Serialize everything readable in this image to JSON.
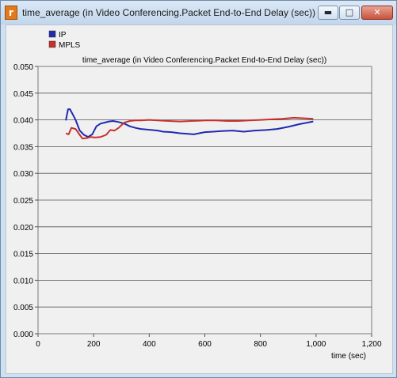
{
  "window": {
    "title": "time_average (in Video Conferencing.Packet End-to-End Delay (sec))",
    "icon_symbol": "r",
    "buttons": {
      "minimize": "minimize-icon",
      "maximize": "maximize-icon",
      "close": "close-icon"
    }
  },
  "chart_data": {
    "type": "line",
    "title": "time_average (in Video Conferencing.Packet End-to-End Delay (sec))",
    "xlabel": "time (sec)",
    "ylabel": "",
    "xlim": [
      0,
      1200
    ],
    "ylim": [
      0,
      0.05
    ],
    "x_ticks": [
      0,
      200,
      400,
      600,
      800,
      1000,
      1200
    ],
    "x_tick_labels": [
      "0",
      "200",
      "400",
      "600",
      "800",
      "1,000",
      "1,200"
    ],
    "y_ticks": [
      0,
      0.005,
      0.01,
      0.015,
      0.02,
      0.025,
      0.03,
      0.035,
      0.04,
      0.045,
      0.05
    ],
    "y_tick_labels": [
      "0.000",
      "0.005",
      "0.010",
      "0.015",
      "0.020",
      "0.025",
      "0.030",
      "0.035",
      "0.040",
      "0.045",
      "0.050"
    ],
    "grid": "horizontal",
    "legend_position": "top-left",
    "series": [
      {
        "name": "IP",
        "color": "#1f2ab0",
        "x": [
          100,
          108,
          115,
          125,
          135,
          150,
          165,
          180,
          195,
          210,
          225,
          240,
          255,
          270,
          290,
          310,
          330,
          350,
          370,
          390,
          410,
          430,
          450,
          480,
          510,
          540,
          560,
          580,
          600,
          630,
          660,
          700,
          740,
          780,
          820,
          860,
          900,
          940,
          990
        ],
        "y": [
          0.0399,
          0.042,
          0.042,
          0.041,
          0.04,
          0.038,
          0.0372,
          0.0368,
          0.0373,
          0.0388,
          0.0393,
          0.0395,
          0.0397,
          0.0398,
          0.0396,
          0.0393,
          0.0388,
          0.0385,
          0.0383,
          0.0382,
          0.0381,
          0.038,
          0.0378,
          0.0377,
          0.0375,
          0.0374,
          0.0373,
          0.0375,
          0.0377,
          0.0378,
          0.0379,
          0.038,
          0.0378,
          0.038,
          0.0381,
          0.0383,
          0.0387,
          0.0392,
          0.0397
        ]
      },
      {
        "name": "MPLS",
        "color": "#c8302b",
        "x": [
          100,
          110,
          120,
          135,
          150,
          160,
          175,
          190,
          205,
          225,
          245,
          260,
          275,
          290,
          310,
          330,
          350,
          370,
          400,
          430,
          470,
          510,
          550,
          600,
          640,
          680,
          720,
          760,
          800,
          840,
          880,
          920,
          960,
          990
        ],
        "y": [
          0.0375,
          0.0373,
          0.0385,
          0.0383,
          0.0372,
          0.0365,
          0.0366,
          0.0368,
          0.0367,
          0.0368,
          0.0372,
          0.0381,
          0.038,
          0.0385,
          0.0395,
          0.0398,
          0.0399,
          0.0399,
          0.04,
          0.0399,
          0.0398,
          0.0397,
          0.0398,
          0.0399,
          0.0399,
          0.0398,
          0.0398,
          0.0399,
          0.04,
          0.0401,
          0.0402,
          0.0404,
          0.0403,
          0.0402
        ]
      }
    ]
  }
}
